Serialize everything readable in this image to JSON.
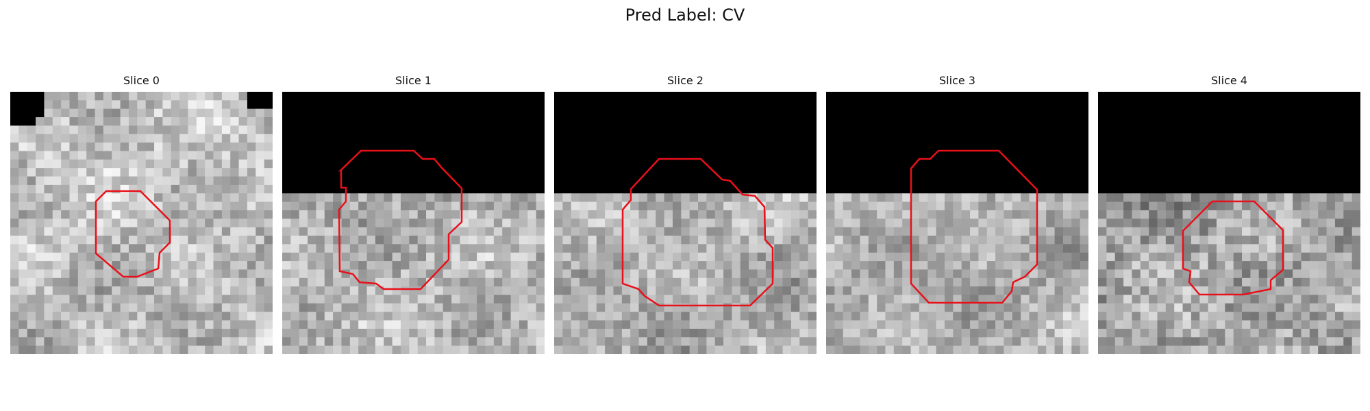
{
  "figure": {
    "title": "Pred Label: CV"
  },
  "panels": [
    {
      "title": "Slice 0",
      "mask_rows": 0,
      "corner_mask": true,
      "seed": 11,
      "brightness": 0.76,
      "contrast": 0.16
    },
    {
      "title": "Slice 1",
      "mask_rows": 12,
      "corner_mask": false,
      "seed": 23,
      "brightness": 0.72,
      "contrast": 0.16
    },
    {
      "title": "Slice 2",
      "mask_rows": 12,
      "corner_mask": false,
      "seed": 37,
      "brightness": 0.72,
      "contrast": 0.15
    },
    {
      "title": "Slice 3",
      "mask_rows": 12,
      "corner_mask": false,
      "seed": 41,
      "brightness": 0.72,
      "contrast": 0.14
    },
    {
      "title": "Slice 4",
      "mask_rows": 12,
      "corner_mask": false,
      "seed": 53,
      "brightness": 0.66,
      "contrast": 0.18
    }
  ],
  "contour_color": "#e8101a",
  "grid_size": 31
}
